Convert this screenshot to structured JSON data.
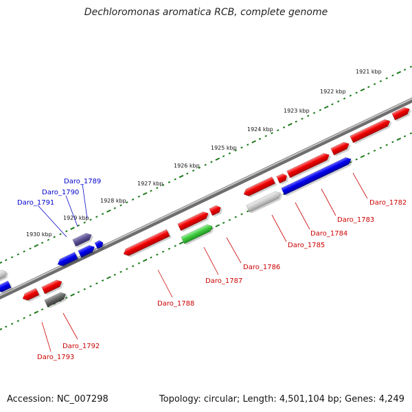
{
  "title": "Dechloromonas aromatica RCB, complete genome",
  "footer": {
    "accession": "Accession: NC_007298",
    "summary": "Topology: circular; Length: 4,501,104 bp; Genes: 4,249"
  },
  "colors": {
    "backbone": "#808080",
    "tick": "#1a7a1a",
    "label_red": "#cc0000",
    "label_blue": "#0000cc",
    "tick_label": "#111111"
  },
  "kbp_labels": [
    "1921 kbp",
    "1922 kbp",
    "1923 kbp",
    "1924 kbp",
    "1925 kbp",
    "1926 kbp",
    "1927 kbp",
    "1928 kbp",
    "1929 kbp",
    "1930 kbp"
  ],
  "genes": [
    {
      "label": "Daro_1782",
      "color": "red"
    },
    {
      "label": "Daro_1783",
      "color": "red"
    },
    {
      "label": "Daro_1784",
      "color": "red"
    },
    {
      "label": "Daro_1785",
      "color": "red"
    },
    {
      "label": "Daro_1786",
      "color": "red"
    },
    {
      "label": "Daro_1787",
      "color": "red"
    },
    {
      "label": "Daro_1788",
      "color": "red"
    },
    {
      "label": "Daro_1789",
      "color": "blue"
    },
    {
      "label": "Daro_1790",
      "color": "blue"
    },
    {
      "label": "Daro_1791",
      "color": "blue"
    },
    {
      "label": "Daro_1792",
      "color": "red"
    },
    {
      "label": "Daro_1793",
      "color": "red"
    }
  ]
}
